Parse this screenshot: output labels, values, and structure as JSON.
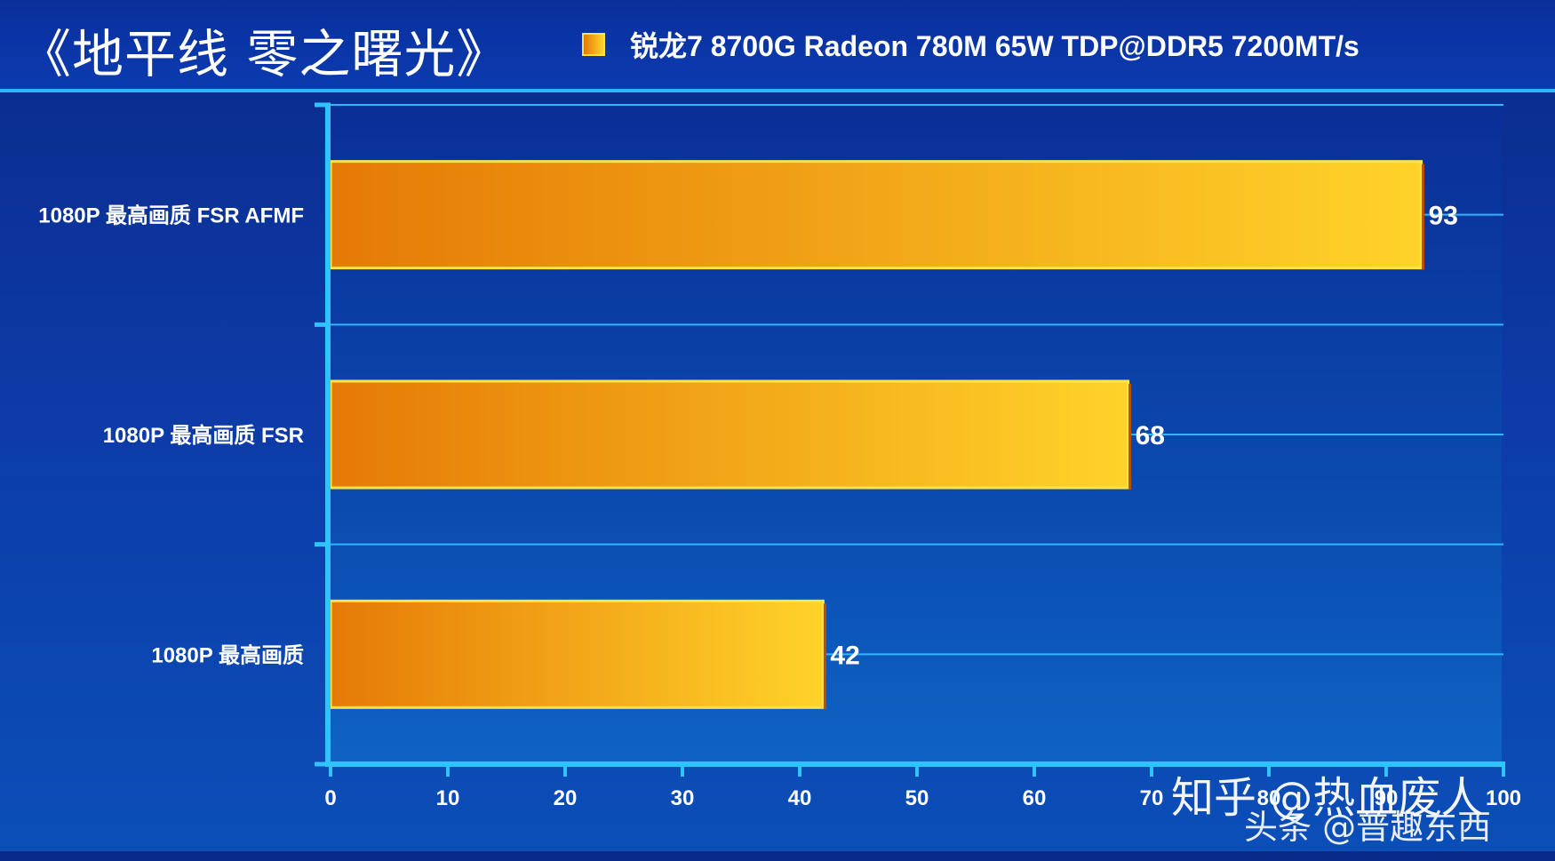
{
  "title": "《地平线 零之曙光》",
  "legend": {
    "label": "锐龙7 8700G Radeon 780M 65W TDP@DDR5 7200MT/s",
    "color_start": "#e57a06",
    "color_end": "#ffd32a"
  },
  "watermark": {
    "line1": "知乎 @热血废人",
    "line2": "头条 @普趣东西"
  },
  "chart_data": {
    "type": "bar",
    "orientation": "horizontal",
    "categories": [
      "1080P 最高画质 FSR AFMF",
      "1080P 最高画质 FSR",
      "1080P 最高画质"
    ],
    "series": [
      {
        "name": "锐龙7 8700G Radeon 780M 65W TDP@DDR5 7200MT/s",
        "values": [
          93,
          68,
          42
        ]
      }
    ],
    "xlim": [
      0,
      100
    ],
    "xticks": [
      "0",
      "10",
      "20",
      "30",
      "40",
      "50",
      "60",
      "70",
      "80",
      "90",
      "100"
    ],
    "grid": true,
    "legend_position": "top-right"
  }
}
